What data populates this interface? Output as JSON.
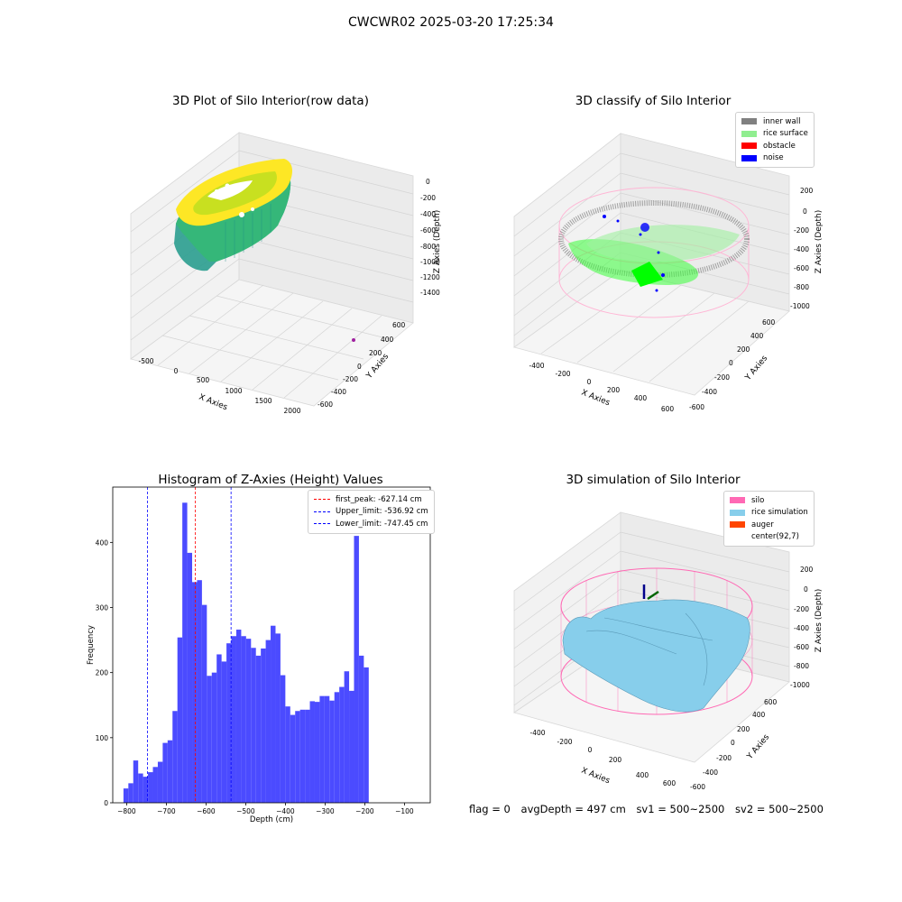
{
  "suptitle": "CWCWR02 2025-03-20 17:25:34",
  "panels": {
    "raw3d": {
      "title": "3D Plot of Silo Interior(row data)",
      "xlabel": "X Axies",
      "ylabel": "Y Axies",
      "zlabel": "Z Axies (Depth)",
      "xticks": [
        "-500",
        "0",
        "500",
        "1000",
        "1500",
        "2000"
      ],
      "yticks": [
        "600",
        "400",
        "200",
        "0",
        "-200",
        "-400",
        "-600"
      ],
      "zticks": [
        "0",
        "-200",
        "-400",
        "-600",
        "-800",
        "-1000",
        "-1200",
        "-1400"
      ]
    },
    "classify3d": {
      "title": "3D classify of Silo Interior",
      "xlabel": "X Axies",
      "ylabel": "Y Axies",
      "zlabel": "Z Axies (Depth)",
      "xticks": [
        "-400",
        "-200",
        "0",
        "200",
        "400",
        "600"
      ],
      "yticks": [
        "600",
        "400",
        "200",
        "0",
        "-200",
        "-400",
        "-600"
      ],
      "zticks": [
        "200",
        "0",
        "-200",
        "-400",
        "-600",
        "-800",
        "-1000"
      ],
      "legend": [
        {
          "label": "inner wall",
          "color": "#808080"
        },
        {
          "label": "rice surface",
          "color": "#90ee90"
        },
        {
          "label": "obstacle",
          "color": "#ff0000"
        },
        {
          "label": "noise",
          "color": "#0000ff"
        }
      ]
    },
    "simulation3d": {
      "title": "3D simulation of Silo Interior",
      "xlabel": "X Axies",
      "ylabel": "Y Axies",
      "zlabel": "Z Axies (Depth)",
      "xticks": [
        "-400",
        "-200",
        "0",
        "200",
        "400",
        "600"
      ],
      "yticks": [
        "600",
        "400",
        "200",
        "0",
        "-200",
        "-400",
        "-600"
      ],
      "zticks": [
        "200",
        "0",
        "-200",
        "-400",
        "-600",
        "-800",
        "-1000"
      ],
      "legend": [
        {
          "label": "silo",
          "color": "#ff69b4"
        },
        {
          "label": "rice simulation",
          "color": "#87ceeb"
        },
        {
          "label": "auger",
          "color": "#ff4500"
        },
        {
          "label": "center(92,7)",
          "color": "#ffffff"
        }
      ]
    }
  },
  "status": {
    "flag": "flag = 0",
    "avg_depth": "avgDepth = 497 cm",
    "sv1": "sv1 = 500~2500",
    "sv2": "sv2 = 500~2500"
  },
  "colors": {
    "histogram_bar": "#4b4bff",
    "first_peak_line": "#ff0000",
    "limit_lines": "#0000ff"
  },
  "chart_data": {
    "type": "bar",
    "title": "Histogram of Z-Axies (Height) Values",
    "xlabel": "Depth (cm)",
    "ylabel": "Frequency",
    "xlim": [
      -835,
      -35
    ],
    "ylim": [
      0,
      485
    ],
    "xticks": [
      -800,
      -700,
      -600,
      -500,
      -400,
      -300,
      -200,
      -100
    ],
    "yticks": [
      0,
      100,
      200,
      300,
      400
    ],
    "bin_start": -808,
    "bin_width": 12.36,
    "values": [
      22,
      30,
      65,
      45,
      40,
      47,
      55,
      63,
      92,
      96,
      141,
      254,
      461,
      384,
      339,
      342,
      304,
      195,
      200,
      228,
      217,
      245,
      256,
      266,
      256,
      252,
      238,
      226,
      237,
      250,
      272,
      260,
      196,
      148,
      135,
      141,
      143,
      143,
      156,
      155,
      164,
      164,
      157,
      170,
      178,
      202,
      172,
      410,
      226,
      208
    ],
    "lines": [
      {
        "label": "first_peak: -627.14 cm",
        "x": -627.14,
        "color": "#ff0000"
      },
      {
        "label": "Upper_limit: -536.92 cm",
        "x": -536.92,
        "color": "#0000ff"
      },
      {
        "label": "Lower_limit: -747.45 cm",
        "x": -747.45,
        "color": "#0000ff"
      }
    ],
    "legend_position": "top-right"
  }
}
